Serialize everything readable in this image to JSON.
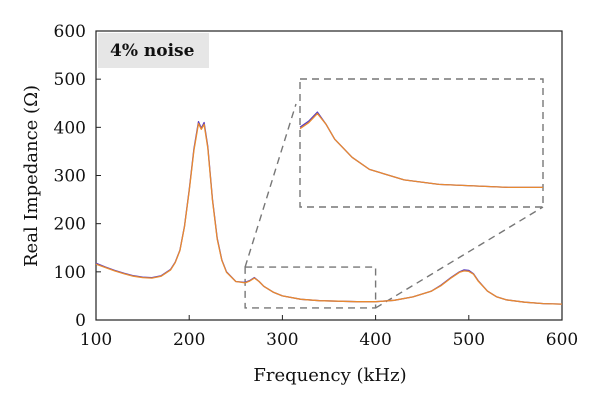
{
  "chart_data": {
    "type": "line",
    "annotation": "4% noise",
    "xlabel": "Frequency (kHz)",
    "ylabel": "Real Impedance (Ω)",
    "xlim": [
      100,
      600
    ],
    "ylim": [
      0,
      600
    ],
    "x_ticks": [
      "100",
      "200",
      "300",
      "400",
      "500",
      "600"
    ],
    "y_ticks": [
      "0",
      "100",
      "200",
      "300",
      "400",
      "500",
      "600"
    ],
    "grid": false,
    "legend": "none",
    "inset": {
      "zoom_region": {
        "x": [
          260,
          400
        ],
        "y": [
          25,
          110
        ]
      },
      "description": "zoomed view of 260–400 kHz region, upper right"
    },
    "series": [
      {
        "color": "#5a3fc0",
        "x": [
          100,
          110,
          120,
          130,
          140,
          150,
          160,
          170,
          180,
          185,
          190,
          195,
          200,
          205,
          210,
          213,
          216,
          220,
          225,
          230,
          235,
          240,
          250,
          260,
          265,
          270,
          275,
          280,
          290,
          300,
          320,
          340,
          360,
          380,
          400,
          420,
          440,
          460,
          470,
          480,
          490,
          495,
          500,
          505,
          510,
          520,
          530,
          540,
          560,
          580,
          600
        ],
        "y": [
          118,
          110,
          103,
          97,
          92,
          89,
          88,
          92,
          105,
          120,
          145,
          195,
          270,
          355,
          412,
          398,
          410,
          360,
          250,
          170,
          125,
          100,
          80,
          78,
          82,
          88,
          80,
          70,
          58,
          50,
          43,
          40,
          39,
          38,
          38,
          41,
          48,
          60,
          72,
          87,
          100,
          104,
          103,
          96,
          82,
          60,
          48,
          42,
          37,
          34,
          33
        ]
      },
      {
        "color": "#e8892f",
        "x": [
          100,
          110,
          120,
          130,
          140,
          150,
          160,
          170,
          180,
          185,
          190,
          195,
          200,
          205,
          210,
          213,
          216,
          220,
          225,
          230,
          235,
          240,
          250,
          260,
          265,
          270,
          275,
          280,
          290,
          300,
          320,
          340,
          360,
          380,
          400,
          420,
          440,
          460,
          470,
          480,
          490,
          495,
          500,
          505,
          510,
          520,
          530,
          540,
          560,
          580,
          600
        ],
        "y": [
          116,
          109,
          102,
          96,
          91,
          88,
          87,
          91,
          104,
          119,
          144,
          194,
          268,
          352,
          408,
          396,
          406,
          357,
          248,
          168,
          124,
          99,
          80,
          77,
          81,
          87,
          80,
          70,
          58,
          50,
          43,
          40,
          39,
          38,
          38,
          41,
          48,
          60,
          71,
          86,
          99,
          102,
          101,
          95,
          81,
          60,
          48,
          42,
          37,
          34,
          33
        ]
      }
    ]
  }
}
